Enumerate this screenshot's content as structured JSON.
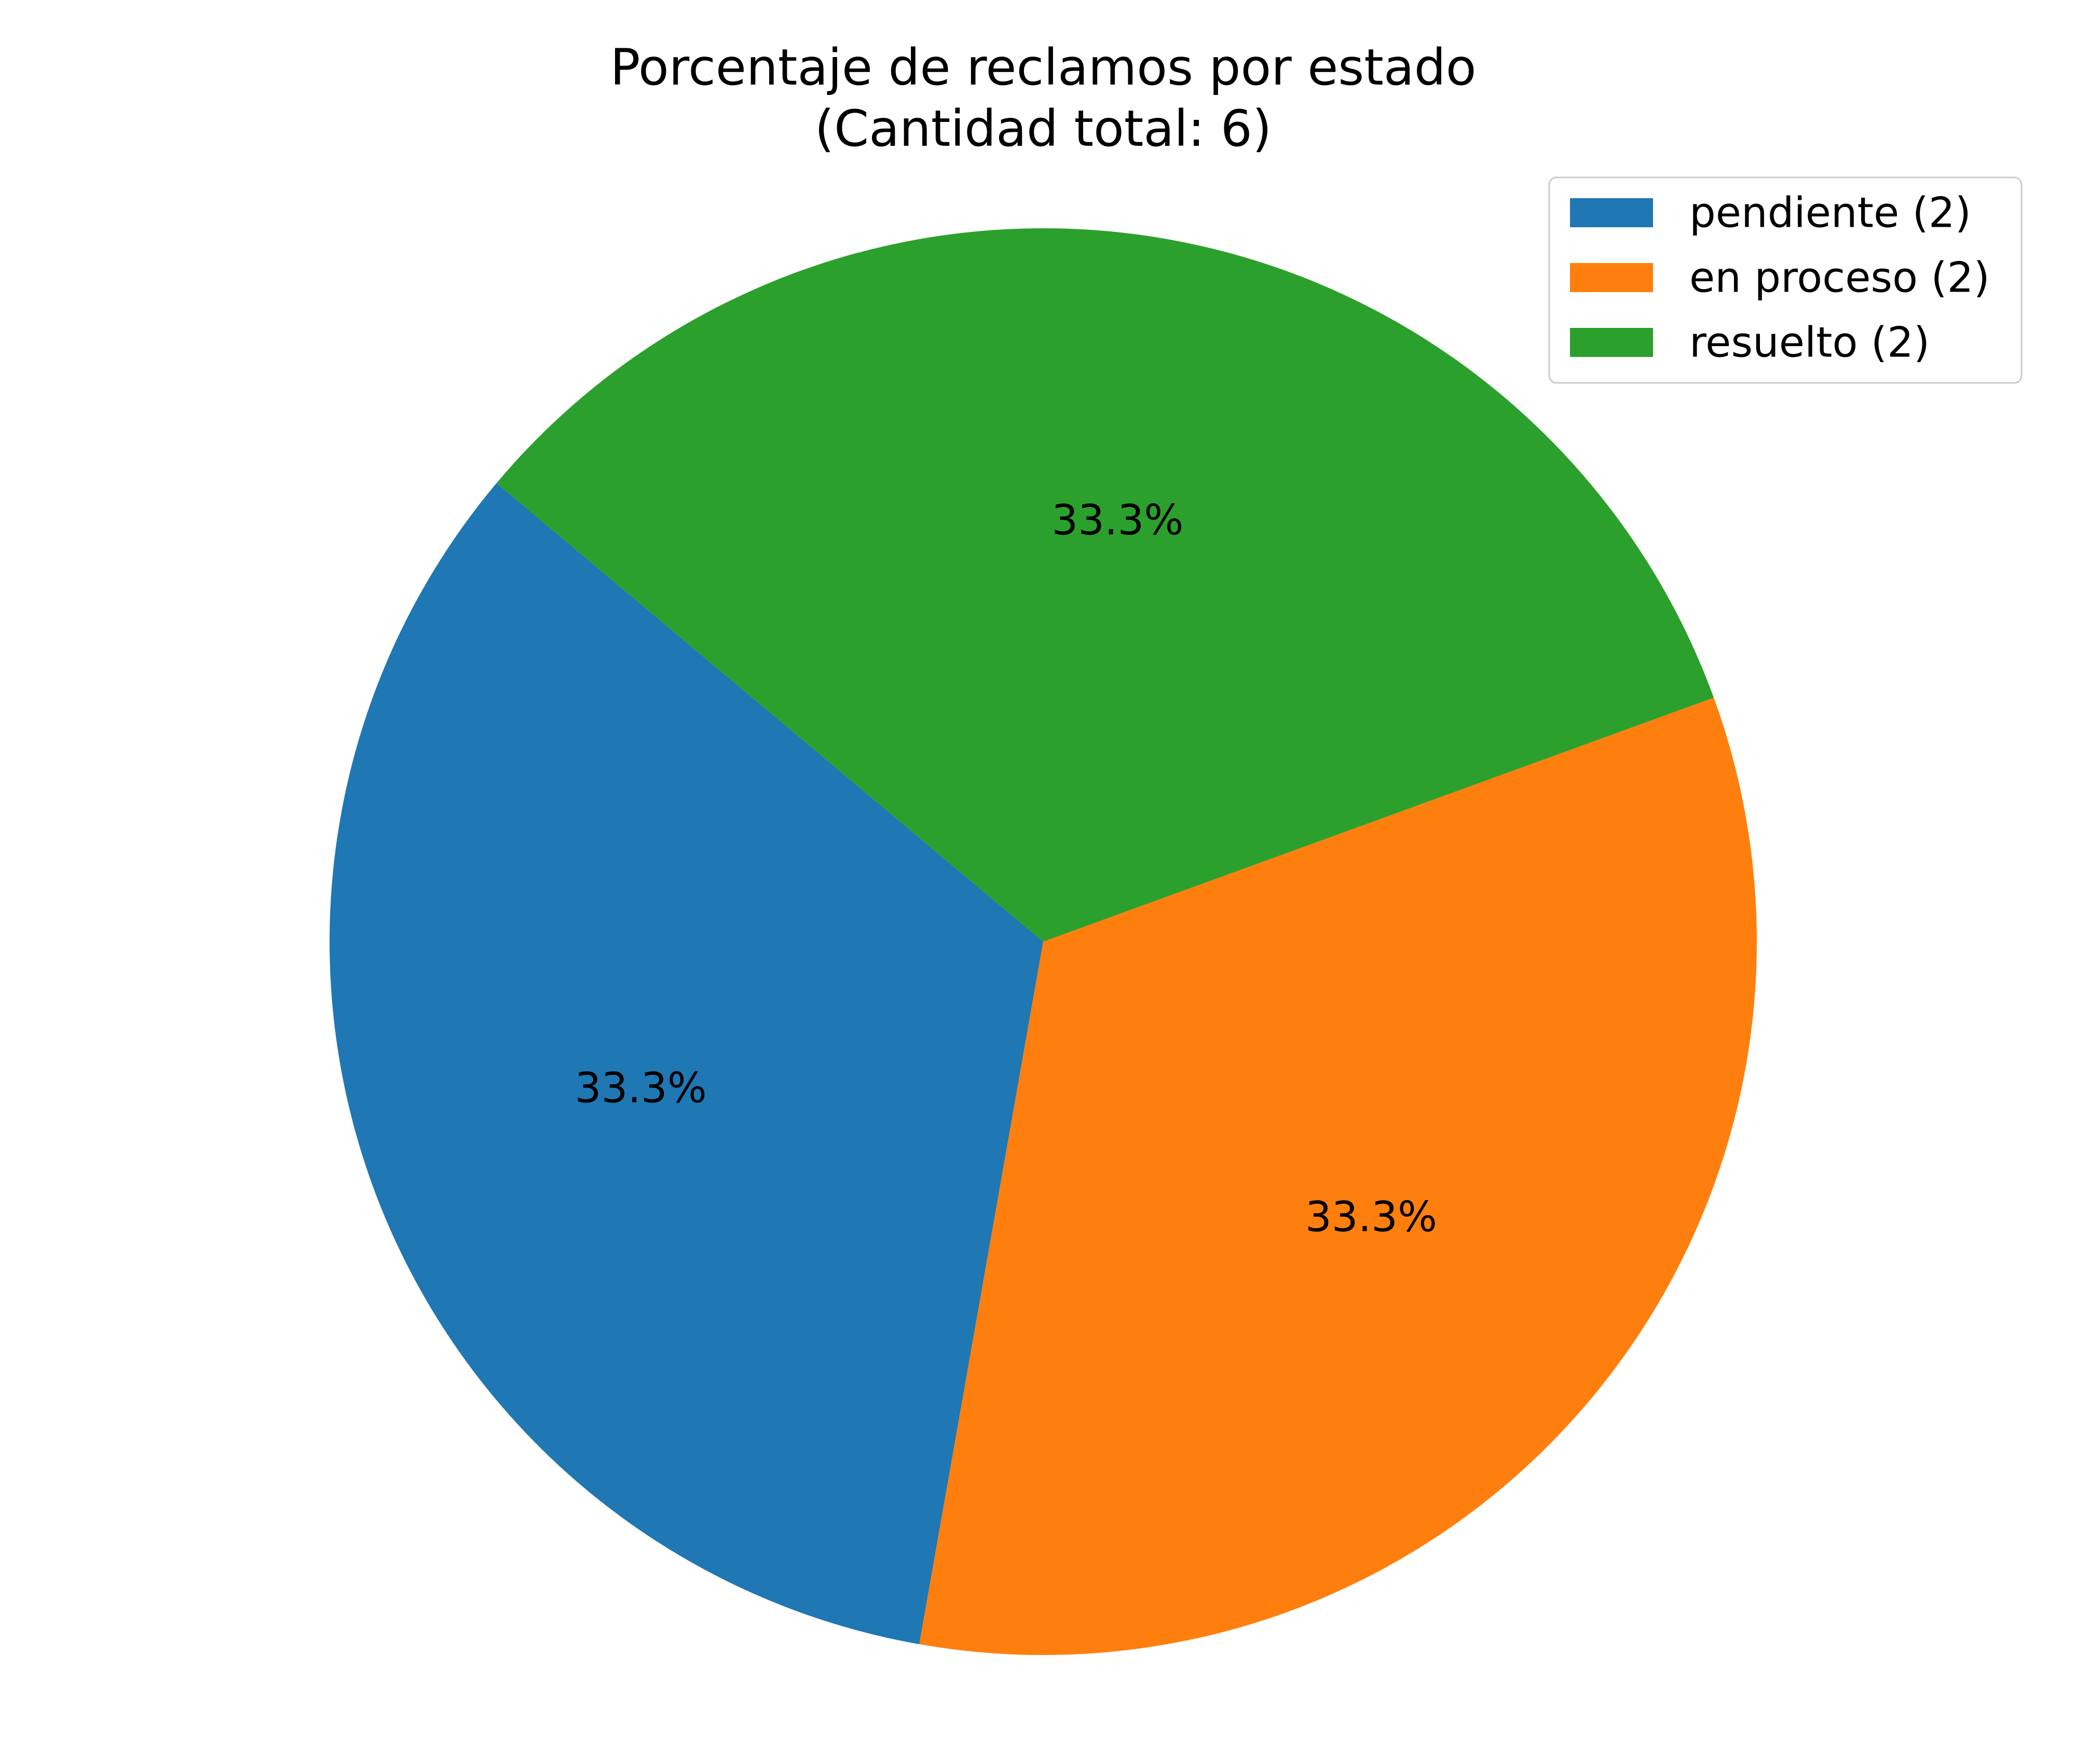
{
  "chart_data": {
    "type": "pie",
    "title": "Porcentaje de reclamos por estado",
    "subtitle": "(Cantidad total: 6)",
    "categories": [
      "pendiente",
      "en proceso",
      "resuelto"
    ],
    "values": [
      2,
      2,
      2
    ],
    "slice_labels": [
      "33.3%",
      "33.3%",
      "33.3%"
    ],
    "legend": [
      "pendiente (2)",
      "en proceso (2)",
      "resuelto (2)"
    ],
    "colors": [
      "#1f77b4",
      "#ff7f0e",
      "#2ca02c"
    ],
    "start_angle_deg": 140,
    "legend_position": "top-right"
  }
}
